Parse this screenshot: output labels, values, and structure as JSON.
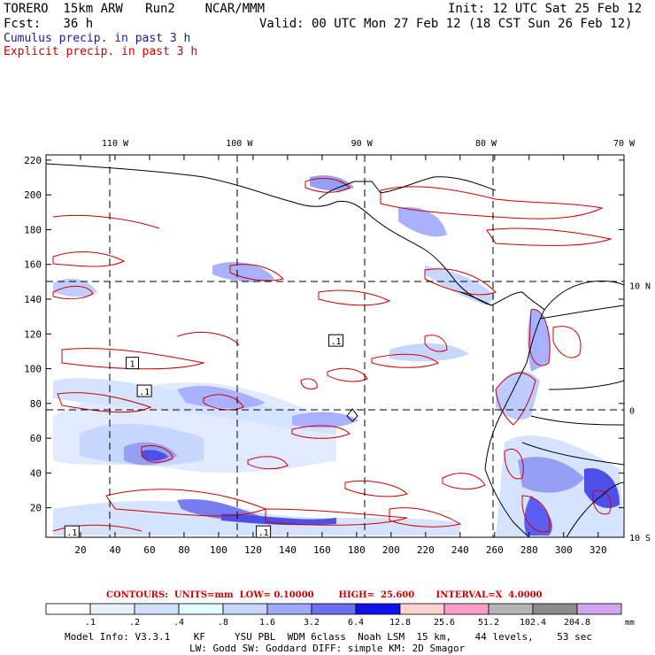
{
  "header": {
    "model": "TORERO  15km ARW   Run2    NCAR/MMM",
    "init": "Init: 12 UTC Sat 25 Feb 12",
    "fcst": "Fcst:   36 h",
    "valid": "Valid: 00 UTC Mon 27 Feb 12 (18 CST Sun 26 Feb 12)",
    "legend_cumulus": "Cumulus precip. in past 3 h",
    "legend_explicit": "Explicit precip. in past 3 h"
  },
  "chart_data": {
    "type": "heatmap",
    "title": "Cumulus / Explicit precip. in past 3 h",
    "x_grid_ticks": [
      "20",
      "40",
      "60",
      "80",
      "100",
      "120",
      "140",
      "160",
      "180",
      "200",
      "220",
      "240",
      "260",
      "280",
      "300",
      "320"
    ],
    "y_grid_ticks": [
      "20",
      "40",
      "60",
      "80",
      "100",
      "120",
      "140",
      "160",
      "180",
      "200",
      "220"
    ],
    "xlim": [
      0,
      335
    ],
    "ylim": [
      3,
      223
    ],
    "lon_labels": [
      {
        "label": "110 W",
        "x": 40
      },
      {
        "label": "100 W",
        "x": 112
      },
      {
        "label": "90 W",
        "x": 183
      },
      {
        "label": "80 W",
        "x": 255
      }
    ],
    "lon_corner_label": "70 W",
    "lat_labels": [
      {
        "label": "10 N",
        "y": 148
      },
      {
        "label": "0",
        "y": 76
      },
      {
        "label": "10 S",
        "y": 3
      }
    ],
    "box_labels": [
      {
        "text": "1",
        "x": 50,
        "y": 103
      },
      {
        "text": ".1",
        "x": 168,
        "y": 116
      },
      {
        "text": ".1",
        "x": 57,
        "y": 87
      },
      {
        "text": ".1",
        "x": 15,
        "y": 6
      },
      {
        "text": ".1",
        "x": 126,
        "y": 6
      }
    ],
    "contours": {
      "caption": "CONTOURS:  UNITS=mm  LOW= 0.10000        HIGH=  25.600       INTERVAL=X  4.0000",
      "units": "mm",
      "low": 0.1,
      "high": 25.6,
      "interval": "X 4.0000"
    },
    "color_scale": {
      "labels": [
        ".1",
        ".2",
        ".4",
        ".8",
        "1.6",
        "3.2",
        "6.4",
        "12.8",
        "25.6",
        "51.2",
        "102.4",
        "204.8"
      ],
      "colors": [
        "#ffffff",
        "#eaf0ff",
        "#d2e0ff",
        "#e2fdff",
        "#c8d7ff",
        "#a0a8ff",
        "#6a6ef0",
        "#1010e8",
        "#ffd2d2",
        "#ff9ec8",
        "#b4b4b4",
        "#8c8c8c",
        "#d4a6f2"
      ],
      "unit": "mm"
    }
  },
  "footer": {
    "line1": "Model Info: V3.3.1    KF     YSU PBL  WDM 6class  Noah LSM  15 km,    44 levels,    53 sec",
    "line2": "LW: Godd SW: Goddard DIFF: simple KM: 2D Smagor"
  }
}
